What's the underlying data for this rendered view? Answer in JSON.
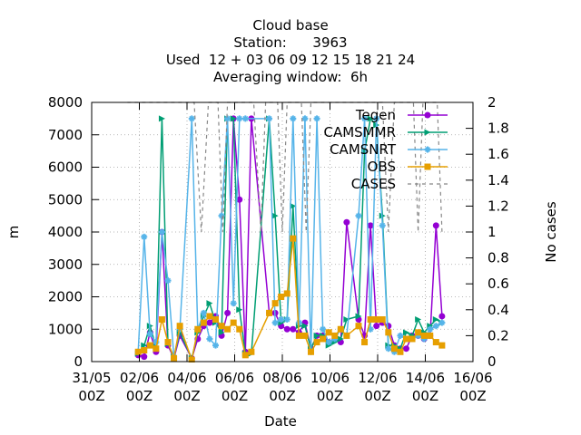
{
  "chart_data": {
    "type": "line",
    "title_lines": [
      "Cloud base",
      "Station:      3963",
      "Used  12 + 03 06 09 12 15 18 21 24",
      "Averaging window:  6h"
    ],
    "xlabel": "Date",
    "ylabel": "m",
    "y2label": "No cases",
    "x_range_days": [
      0,
      16
    ],
    "ylim": [
      0,
      8000
    ],
    "y2lim": [
      0,
      2
    ],
    "x_ticks": [
      {
        "d": 0,
        "line1": "31/05",
        "line2": "00Z"
      },
      {
        "d": 2,
        "line1": "02/06",
        "line2": "00Z"
      },
      {
        "d": 4,
        "line1": "04/06",
        "line2": "00Z"
      },
      {
        "d": 6,
        "line1": "06/06",
        "line2": "00Z"
      },
      {
        "d": 8,
        "line1": "08/06",
        "line2": "00Z"
      },
      {
        "d": 10,
        "line1": "10/06",
        "line2": "00Z"
      },
      {
        "d": 12,
        "line1": "12/06",
        "line2": "00Z"
      },
      {
        "d": 14,
        "line1": "14/06",
        "line2": "00Z"
      },
      {
        "d": 16,
        "line1": "16/06",
        "line2": "00Z"
      }
    ],
    "y_ticks": [
      "0",
      "1000",
      "2000",
      "3000",
      "4000",
      "5000",
      "6000",
      "7000",
      "8000"
    ],
    "y2_ticks": [
      "0",
      "0.2",
      "0.4",
      "0.6",
      "0.8",
      "1",
      "1.2",
      "1.4",
      "1.6",
      "1.8",
      "2"
    ],
    "grid": true,
    "legend_position": "top-right",
    "series": [
      {
        "name": "Tegen",
        "color": "#9400d3",
        "marker": "circle",
        "points": [
          [
            1.95,
            200
          ],
          [
            2.2,
            150
          ],
          [
            2.45,
            900
          ],
          [
            2.7,
            300
          ],
          [
            2.95,
            4000
          ],
          [
            3.2,
            500
          ],
          [
            3.45,
            100
          ],
          [
            3.7,
            800
          ],
          [
            4.2,
            100
          ],
          [
            4.45,
            700
          ],
          [
            4.7,
            1100
          ],
          [
            4.95,
            1200
          ],
          [
            5.2,
            1400
          ],
          [
            5.45,
            800
          ],
          [
            5.7,
            1500
          ],
          [
            5.95,
            7500
          ],
          [
            6.2,
            5000
          ],
          [
            6.45,
            300
          ],
          [
            6.7,
            7500
          ],
          [
            7.45,
            1500
          ],
          [
            7.7,
            1500
          ],
          [
            7.95,
            1100
          ],
          [
            8.2,
            1000
          ],
          [
            8.45,
            1000
          ],
          [
            8.7,
            900
          ],
          [
            8.95,
            1200
          ],
          [
            9.2,
            400
          ],
          [
            9.45,
            800
          ],
          [
            9.7,
            800
          ],
          [
            9.95,
            600
          ],
          [
            10.2,
            700
          ],
          [
            10.45,
            600
          ],
          [
            10.7,
            4300
          ],
          [
            11.2,
            1300
          ],
          [
            11.45,
            800
          ],
          [
            11.7,
            4200
          ],
          [
            11.95,
            1100
          ],
          [
            12.2,
            1200
          ],
          [
            12.45,
            1100
          ],
          [
            12.7,
            500
          ],
          [
            12.95,
            400
          ],
          [
            13.2,
            400
          ],
          [
            13.45,
            800
          ],
          [
            13.7,
            800
          ],
          [
            13.95,
            700
          ],
          [
            14.2,
            800
          ],
          [
            14.45,
            4200
          ],
          [
            14.7,
            1400
          ]
        ]
      },
      {
        "name": "CAMSMMR",
        "color": "#009e73",
        "marker": "triangle",
        "points": [
          [
            1.95,
            250
          ],
          [
            2.2,
            500
          ],
          [
            2.45,
            1100
          ],
          [
            2.7,
            450
          ],
          [
            2.95,
            7500
          ],
          [
            3.2,
            550
          ],
          [
            3.45,
            150
          ],
          [
            3.7,
            900
          ],
          [
            4.2,
            100
          ],
          [
            4.45,
            900
          ],
          [
            4.7,
            1400
          ],
          [
            4.95,
            1800
          ],
          [
            5.2,
            1200
          ],
          [
            5.45,
            900
          ],
          [
            5.7,
            7500
          ],
          [
            5.95,
            7500
          ],
          [
            6.2,
            1600
          ],
          [
            6.45,
            250
          ],
          [
            6.7,
            250
          ],
          [
            7.45,
            7500
          ],
          [
            7.7,
            4500
          ],
          [
            7.95,
            1200
          ],
          [
            8.2,
            1300
          ],
          [
            8.45,
            4800
          ],
          [
            8.7,
            1100
          ],
          [
            8.95,
            1100
          ],
          [
            9.2,
            400
          ],
          [
            9.45,
            800
          ],
          [
            9.7,
            800
          ],
          [
            9.95,
            500
          ],
          [
            10.2,
            600
          ],
          [
            10.45,
            700
          ],
          [
            10.7,
            1300
          ],
          [
            11.2,
            1400
          ],
          [
            11.45,
            6500
          ],
          [
            11.7,
            7500
          ],
          [
            11.95,
            7300
          ],
          [
            12.2,
            4500
          ],
          [
            12.45,
            500
          ],
          [
            12.7,
            500
          ],
          [
            12.95,
            400
          ],
          [
            13.2,
            900
          ],
          [
            13.45,
            800
          ],
          [
            13.7,
            1300
          ],
          [
            13.95,
            900
          ],
          [
            14.2,
            1100
          ],
          [
            14.45,
            1300
          ],
          [
            14.7,
            1200
          ]
        ]
      },
      {
        "name": "CAMSNRT",
        "color": "#56b4e9",
        "marker": "star",
        "points": [
          [
            1.95,
            300
          ],
          [
            2.2,
            3850
          ],
          [
            2.45,
            850
          ],
          [
            2.7,
            600
          ],
          [
            2.95,
            4000
          ],
          [
            3.2,
            2500
          ],
          [
            3.45,
            150
          ],
          [
            3.7,
            1000
          ],
          [
            4.2,
            7500
          ],
          [
            4.45,
            1000
          ],
          [
            4.7,
            1500
          ],
          [
            4.95,
            700
          ],
          [
            5.2,
            500
          ],
          [
            5.45,
            4500
          ],
          [
            5.7,
            7500
          ],
          [
            5.95,
            1800
          ],
          [
            6.2,
            7500
          ],
          [
            6.45,
            7500
          ],
          [
            7.45,
            7500
          ],
          [
            7.7,
            1200
          ],
          [
            7.95,
            1300
          ],
          [
            8.2,
            1300
          ],
          [
            8.45,
            7500
          ],
          [
            8.7,
            1200
          ],
          [
            8.95,
            7500
          ],
          [
            9.2,
            300
          ],
          [
            9.45,
            7500
          ],
          [
            9.7,
            1000
          ],
          [
            9.95,
            600
          ],
          [
            10.2,
            700
          ],
          [
            10.45,
            1000
          ],
          [
            10.7,
            800
          ],
          [
            11.2,
            4500
          ],
          [
            11.45,
            7500
          ],
          [
            11.7,
            1000
          ],
          [
            11.95,
            7500
          ],
          [
            12.2,
            4200
          ],
          [
            12.45,
            400
          ],
          [
            12.7,
            300
          ],
          [
            12.95,
            800
          ],
          [
            13.2,
            700
          ],
          [
            13.45,
            700
          ],
          [
            13.7,
            800
          ],
          [
            13.95,
            700
          ],
          [
            14.2,
            1000
          ],
          [
            14.45,
            1100
          ],
          [
            14.7,
            1200
          ]
        ]
      },
      {
        "name": "OBS",
        "color": "#e69f00",
        "marker": "square",
        "points": [
          [
            1.95,
            300
          ],
          [
            2.2,
            350
          ],
          [
            2.45,
            500
          ],
          [
            2.7,
            400
          ],
          [
            2.95,
            1300
          ],
          [
            3.2,
            600
          ],
          [
            3.45,
            100
          ],
          [
            3.7,
            1100
          ],
          [
            4.2,
            50
          ],
          [
            4.45,
            1000
          ],
          [
            4.7,
            1200
          ],
          [
            4.95,
            1400
          ],
          [
            5.2,
            1300
          ],
          [
            5.45,
            1100
          ],
          [
            5.7,
            1000
          ],
          [
            5.95,
            1200
          ],
          [
            6.2,
            1000
          ],
          [
            6.45,
            200
          ],
          [
            6.7,
            300
          ],
          [
            7.45,
            1500
          ],
          [
            7.7,
            1800
          ],
          [
            7.95,
            2000
          ],
          [
            8.2,
            2100
          ],
          [
            8.45,
            3800
          ],
          [
            8.7,
            800
          ],
          [
            8.95,
            800
          ],
          [
            9.2,
            300
          ],
          [
            9.45,
            600
          ],
          [
            9.7,
            700
          ],
          [
            9.95,
            900
          ],
          [
            10.2,
            800
          ],
          [
            10.45,
            1000
          ],
          [
            10.7,
            800
          ],
          [
            11.2,
            1100
          ],
          [
            11.45,
            600
          ],
          [
            11.7,
            1300
          ],
          [
            11.95,
            1300
          ],
          [
            12.2,
            1300
          ],
          [
            12.45,
            900
          ],
          [
            12.7,
            400
          ],
          [
            12.95,
            300
          ],
          [
            13.2,
            700
          ],
          [
            13.45,
            700
          ],
          [
            13.7,
            900
          ],
          [
            13.95,
            800
          ],
          [
            14.2,
            800
          ],
          [
            14.45,
            600
          ],
          [
            14.7,
            500
          ]
        ]
      },
      {
        "name": "CASES",
        "color": "#888888",
        "axis": "y2",
        "style": "dashed",
        "points": [
          [
            1.5,
            2
          ],
          [
            4.3,
            2
          ],
          [
            4.6,
            1
          ],
          [
            4.9,
            2
          ],
          [
            5.3,
            2
          ],
          [
            5.5,
            1
          ],
          [
            5.7,
            2
          ],
          [
            6.8,
            2
          ],
          [
            7.1,
            1
          ],
          [
            7.3,
            2
          ],
          [
            7.8,
            2
          ],
          [
            8.0,
            1
          ],
          [
            8.2,
            2
          ],
          [
            8.8,
            2
          ],
          [
            9.0,
            1
          ],
          [
            9.2,
            2
          ],
          [
            12.2,
            2
          ],
          [
            12.45,
            1
          ],
          [
            12.7,
            2
          ],
          [
            13.5,
            2
          ],
          [
            13.7,
            1
          ],
          [
            13.9,
            2
          ],
          [
            14.5,
            2
          ],
          [
            14.7,
            1
          ],
          [
            14.8,
            1
          ]
        ]
      }
    ]
  }
}
